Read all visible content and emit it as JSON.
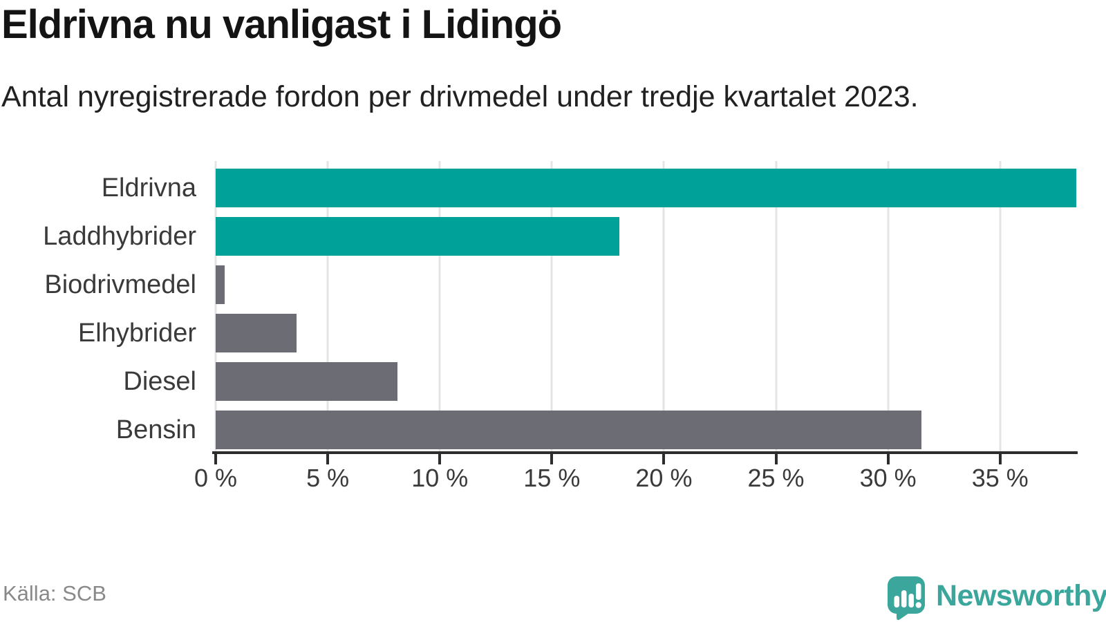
{
  "chart_data": {
    "type": "bar",
    "orientation": "horizontal",
    "title": "Eldrivna nu vanligast i Lidingö",
    "subtitle": "Antal nyregistrerade fordon per drivmedel under tredje kvartalet 2023.",
    "categories": [
      "Eldrivna",
      "Laddhybrider",
      "Biodrivmedel",
      "Elhybrider",
      "Diesel",
      "Bensin"
    ],
    "values": [
      38.4,
      18.0,
      0.4,
      3.6,
      8.1,
      31.5
    ],
    "unit": "%",
    "colors": [
      "#00a198",
      "#00a198",
      "#6c6c75",
      "#6c6c75",
      "#6c6c75",
      "#6c6c75"
    ],
    "xlim": [
      0,
      38.4
    ],
    "xticks": [
      0,
      5,
      10,
      15,
      20,
      25,
      30,
      35
    ],
    "xtick_labels": [
      "0 %",
      "5 %",
      "10 %",
      "15 %",
      "20 %",
      "25 %",
      "30 %",
      "35 %"
    ],
    "xlabel": "",
    "ylabel": "",
    "grid": true,
    "legend": "none"
  },
  "colors": {
    "title": "#141414",
    "text": "#3a3a3a",
    "gridline": "#e4e4e4",
    "axis": "#2d2d2d",
    "source": "#898989",
    "brand": "#3aa69c",
    "bar_electric": "#00a198",
    "bar_other": "#6c6c75"
  },
  "footer": {
    "source": "Källa: SCB",
    "brand": "Newsworthy"
  }
}
